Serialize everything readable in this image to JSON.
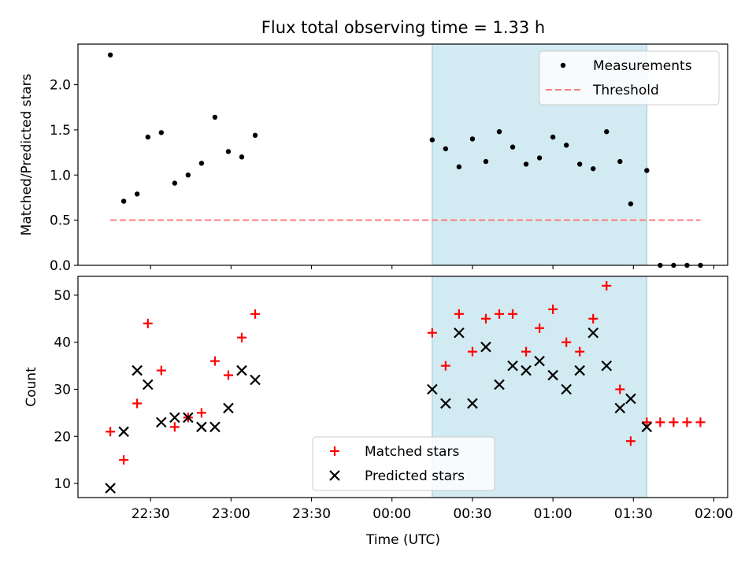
{
  "figure": {
    "title": "Flux total observing time = 1.33 h",
    "xlabel": "Time (UTC)",
    "x_ticks": [
      "22:30",
      "23:00",
      "23:30",
      "00:00",
      "00:30",
      "01:00",
      "01:30",
      "02:00"
    ]
  },
  "chart_data": [
    {
      "type": "scatter",
      "ylabel": "Matched/Predicted stars",
      "ylim": [
        0,
        2.45
      ],
      "y_ticks": [
        "0.0",
        "0.5",
        "1.0",
        "1.5",
        "2.0"
      ],
      "shaded_region": {
        "x": [
          "00:15",
          "01:35"
        ],
        "color": "#add8e6"
      },
      "legend": {
        "position": "top-right",
        "items": [
          "Measurements",
          "Threshold"
        ]
      },
      "series": [
        {
          "name": "Measurements",
          "marker": "dot",
          "color": "#000000",
          "x": [
            "22:15",
            "22:20",
            "22:25",
            "22:29",
            "22:34",
            "22:39",
            "22:44",
            "22:49",
            "22:54",
            "22:59",
            "23:04",
            "23:09",
            "00:15",
            "00:20",
            "00:25",
            "00:30",
            "00:35",
            "00:40",
            "00:45",
            "00:50",
            "00:55",
            "01:00",
            "01:05",
            "01:10",
            "01:15",
            "01:20",
            "01:25",
            "01:29",
            "01:35",
            "01:40",
            "01:45",
            "01:50",
            "01:55"
          ],
          "y": [
            2.33,
            0.71,
            0.79,
            1.42,
            1.47,
            0.91,
            1.0,
            1.13,
            1.64,
            1.26,
            1.2,
            1.44,
            1.39,
            1.29,
            1.09,
            1.4,
            1.15,
            1.48,
            1.31,
            1.12,
            1.19,
            1.42,
            1.33,
            1.12,
            1.07,
            1.48,
            1.15,
            0.68,
            1.05,
            0.0,
            0.0,
            0.0,
            0.0
          ]
        },
        {
          "name": "Threshold",
          "style": "dashed",
          "color": "#ff7b7b",
          "x": [
            "22:15",
            "01:55"
          ],
          "y": [
            0.5,
            0.5
          ]
        }
      ]
    },
    {
      "type": "scatter",
      "ylabel": "Count",
      "ylim": [
        7,
        54
      ],
      "y_ticks": [
        "10",
        "20",
        "30",
        "40",
        "50"
      ],
      "shaded_region": {
        "x": [
          "00:15",
          "01:35"
        ],
        "color": "#add8e6"
      },
      "legend": {
        "position": "bottom-center",
        "items": [
          "Matched stars",
          "Predicted stars"
        ]
      },
      "series": [
        {
          "name": "Matched stars",
          "marker": "plus",
          "color": "#ff0000",
          "x": [
            "22:15",
            "22:20",
            "22:25",
            "22:29",
            "22:34",
            "22:39",
            "22:44",
            "22:49",
            "22:54",
            "22:59",
            "23:04",
            "23:09",
            "00:15",
            "00:20",
            "00:25",
            "00:30",
            "00:35",
            "00:40",
            "00:45",
            "00:50",
            "00:55",
            "01:00",
            "01:05",
            "01:10",
            "01:15",
            "01:20",
            "01:25",
            "01:29",
            "01:35",
            "01:40",
            "01:45",
            "01:50",
            "01:55"
          ],
          "y": [
            21,
            15,
            27,
            44,
            34,
            22,
            24,
            25,
            36,
            33,
            41,
            46,
            42,
            35,
            46,
            38,
            45,
            46,
            46,
            38,
            43,
            47,
            40,
            38,
            45,
            52,
            30,
            19,
            23,
            23,
            23,
            23,
            23
          ]
        },
        {
          "name": "Predicted stars",
          "marker": "x",
          "color": "#000000",
          "x": [
            "22:15",
            "22:20",
            "22:25",
            "22:29",
            "22:34",
            "22:39",
            "22:44",
            "22:49",
            "22:54",
            "22:59",
            "23:04",
            "23:09",
            "00:15",
            "00:20",
            "00:25",
            "00:30",
            "00:35",
            "00:40",
            "00:45",
            "00:50",
            "00:55",
            "01:00",
            "01:05",
            "01:10",
            "01:15",
            "01:20",
            "01:25",
            "01:29",
            "01:35"
          ],
          "y": [
            9,
            21,
            34,
            31,
            23,
            24,
            24,
            22,
            22,
            26,
            34,
            32,
            30,
            27,
            42,
            27,
            39,
            31,
            35,
            34,
            36,
            33,
            30,
            34,
            42,
            35,
            26,
            28,
            22
          ]
        }
      ]
    }
  ]
}
